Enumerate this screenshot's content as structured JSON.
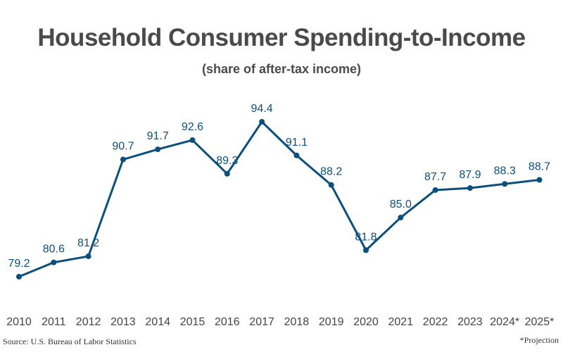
{
  "chart_data": {
    "type": "line",
    "title": "Household Consumer Spending-to-Income",
    "subtitle": "(share of after-tax income)",
    "xlabel": "",
    "ylabel": "",
    "categories": [
      "2010",
      "2011",
      "2012",
      "2013",
      "2014",
      "2015",
      "2016",
      "2017",
      "2018",
      "2019",
      "2020",
      "2021",
      "2022",
      "2023",
      "2024*",
      "2025*"
    ],
    "series": [
      {
        "name": "Spending-to-Income",
        "color": "#0b4f7c",
        "values": [
          79.2,
          80.6,
          81.2,
          90.7,
          91.7,
          92.6,
          89.3,
          94.4,
          91.1,
          88.2,
          81.8,
          85.0,
          87.7,
          87.9,
          88.3,
          88.7
        ],
        "labels": [
          "79.2",
          "80.6",
          "81.2",
          "90.7",
          "91.7",
          "92.6",
          "89.3",
          "94.4",
          "91.1",
          "88.2",
          "81.8",
          "85.0",
          "87.7",
          "87.9",
          "88.3",
          "88.7"
        ]
      }
    ],
    "ylim": [
      79.2,
      94.4
    ],
    "grid": false,
    "legend": "none",
    "source": "Source: U.S. Bureau of Labor Statistics",
    "note": "*Projection"
  }
}
